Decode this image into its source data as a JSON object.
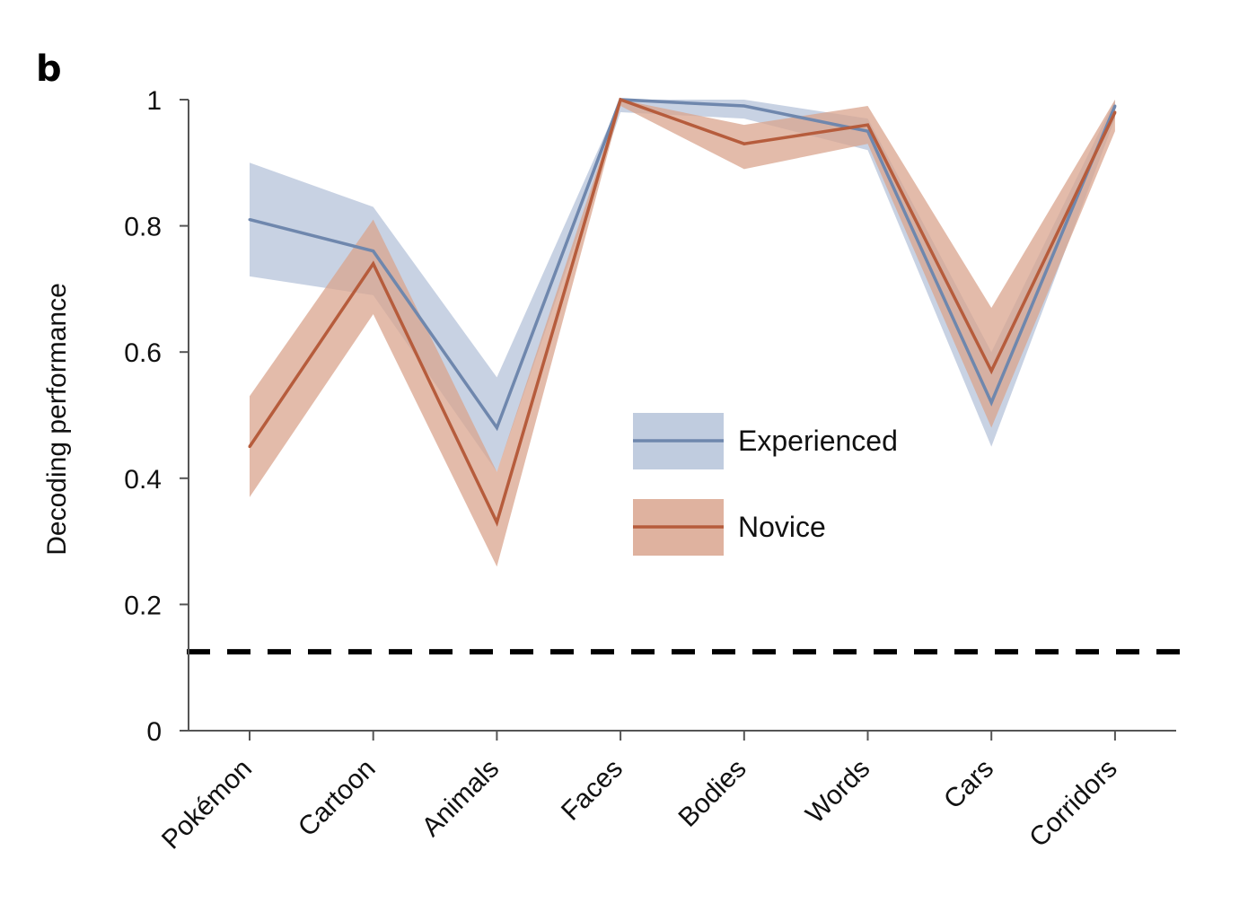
{
  "panel_label": "b",
  "chart_data": {
    "type": "line",
    "ylabel": "Decoding performance",
    "xlabel": "",
    "ylim": [
      0,
      1
    ],
    "yticks": [
      0,
      0.2,
      0.4,
      0.6,
      0.8,
      1
    ],
    "ytick_labels": [
      "0",
      "0.2",
      "0.4",
      "0.6",
      "0.8",
      "1"
    ],
    "categories": [
      "Pokémon",
      "Cartoon",
      "Animals",
      "Faces",
      "Bodies",
      "Words",
      "Cars",
      "Corridors"
    ],
    "chance_level": 0.125,
    "series": [
      {
        "name": "Experienced",
        "color": "#6f87ad",
        "band_color": "#b5c3d9",
        "values": [
          0.81,
          0.76,
          0.48,
          1.0,
          0.99,
          0.95,
          0.52,
          0.99
        ],
        "lower": [
          0.72,
          0.69,
          0.41,
          0.98,
          0.97,
          0.92,
          0.45,
          0.97
        ],
        "upper": [
          0.9,
          0.83,
          0.56,
          1.0,
          1.0,
          0.97,
          0.6,
          1.0
        ]
      },
      {
        "name": "Novice",
        "color": "#b65c3c",
        "band_color": "#d9a48e",
        "values": [
          0.45,
          0.74,
          0.33,
          1.0,
          0.93,
          0.96,
          0.57,
          0.98
        ],
        "lower": [
          0.37,
          0.66,
          0.26,
          0.99,
          0.89,
          0.93,
          0.48,
          0.95
        ],
        "upper": [
          0.53,
          0.81,
          0.41,
          1.0,
          0.96,
          0.99,
          0.67,
          1.0
        ]
      }
    ],
    "legend_position": "center-right",
    "grid": false
  }
}
